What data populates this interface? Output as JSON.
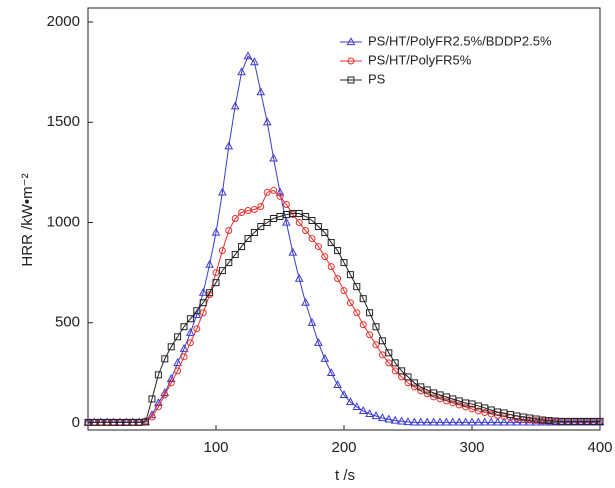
{
  "chart_data": {
    "type": "line",
    "xlabel": "t /s",
    "ylabel": "HRR /kW•m⁻²",
    "x": [
      0,
      5,
      10,
      15,
      20,
      25,
      30,
      35,
      40,
      45,
      50,
      55,
      60,
      65,
      70,
      75,
      80,
      85,
      90,
      95,
      100,
      105,
      110,
      115,
      120,
      125,
      130,
      135,
      140,
      145,
      150,
      155,
      160,
      165,
      170,
      175,
      180,
      185,
      190,
      195,
      200,
      205,
      210,
      215,
      220,
      225,
      230,
      235,
      240,
      245,
      250,
      255,
      260,
      265,
      270,
      275,
      280,
      285,
      290,
      295,
      300,
      305,
      310,
      315,
      320,
      325,
      330,
      335,
      340,
      345,
      350,
      355,
      360,
      365,
      370,
      375,
      380,
      385,
      390,
      395,
      400
    ],
    "series": [
      {
        "name": "PS/HT/PolyFR2.5%/BDDP2.5%",
        "color": "#3a3ad0",
        "marker": "triangle",
        "values": [
          3,
          3,
          3,
          3,
          3,
          3,
          3,
          3,
          3,
          5,
          40,
          100,
          150,
          220,
          300,
          370,
          450,
          540,
          650,
          790,
          950,
          1150,
          1380,
          1580,
          1750,
          1830,
          1800,
          1650,
          1500,
          1320,
          1150,
          1000,
          850,
          720,
          600,
          500,
          400,
          320,
          250,
          190,
          140,
          105,
          80,
          60,
          45,
          35,
          25,
          18,
          12,
          8,
          5,
          3,
          3,
          3,
          3,
          3,
          3,
          3,
          3,
          3,
          3,
          3,
          3,
          3,
          3,
          3,
          3,
          3,
          3,
          3,
          3,
          3,
          3,
          3,
          3,
          3,
          3,
          3,
          3,
          3,
          3
        ]
      },
      {
        "name": "PS/HT/PolyFR5%",
        "color": "#e8302e",
        "marker": "circle",
        "values": [
          3,
          3,
          3,
          3,
          3,
          3,
          3,
          3,
          3,
          10,
          30,
          80,
          140,
          200,
          260,
          330,
          400,
          470,
          550,
          640,
          750,
          860,
          960,
          1020,
          1050,
          1060,
          1065,
          1080,
          1150,
          1160,
          1130,
          1090,
          1040,
          1000,
          960,
          920,
          880,
          830,
          780,
          720,
          660,
          600,
          550,
          490,
          440,
          390,
          340,
          300,
          260,
          230,
          200,
          180,
          160,
          145,
          130,
          120,
          110,
          100,
          90,
          80,
          70,
          60,
          52,
          45,
          38,
          32,
          27,
          22,
          18,
          15,
          12,
          10,
          9,
          8,
          8,
          8,
          8,
          8,
          8,
          8,
          8
        ]
      },
      {
        "name": "PS",
        "color": "#222222",
        "marker": "square",
        "values": [
          3,
          3,
          3,
          3,
          3,
          3,
          3,
          3,
          3,
          5,
          120,
          240,
          320,
          380,
          430,
          480,
          520,
          560,
          600,
          650,
          700,
          760,
          800,
          840,
          880,
          920,
          950,
          980,
          1000,
          1020,
          1030,
          1040,
          1045,
          1045,
          1030,
          1010,
          980,
          950,
          900,
          860,
          800,
          740,
          680,
          620,
          550,
          480,
          410,
          350,
          300,
          260,
          230,
          200,
          180,
          165,
          150,
          140,
          130,
          120,
          110,
          100,
          95,
          85,
          75,
          65,
          55,
          50,
          42,
          35,
          30,
          25,
          20,
          15,
          12,
          10,
          8,
          8,
          8,
          8,
          8,
          8,
          8
        ]
      }
    ],
    "xlim": [
      0,
      400
    ],
    "xticks": [
      100,
      200,
      300,
      400
    ],
    "ylim": [
      -35,
      2070
    ],
    "yticks": [
      0,
      500,
      1000,
      1500,
      2000
    ],
    "legend": "upper right"
  }
}
